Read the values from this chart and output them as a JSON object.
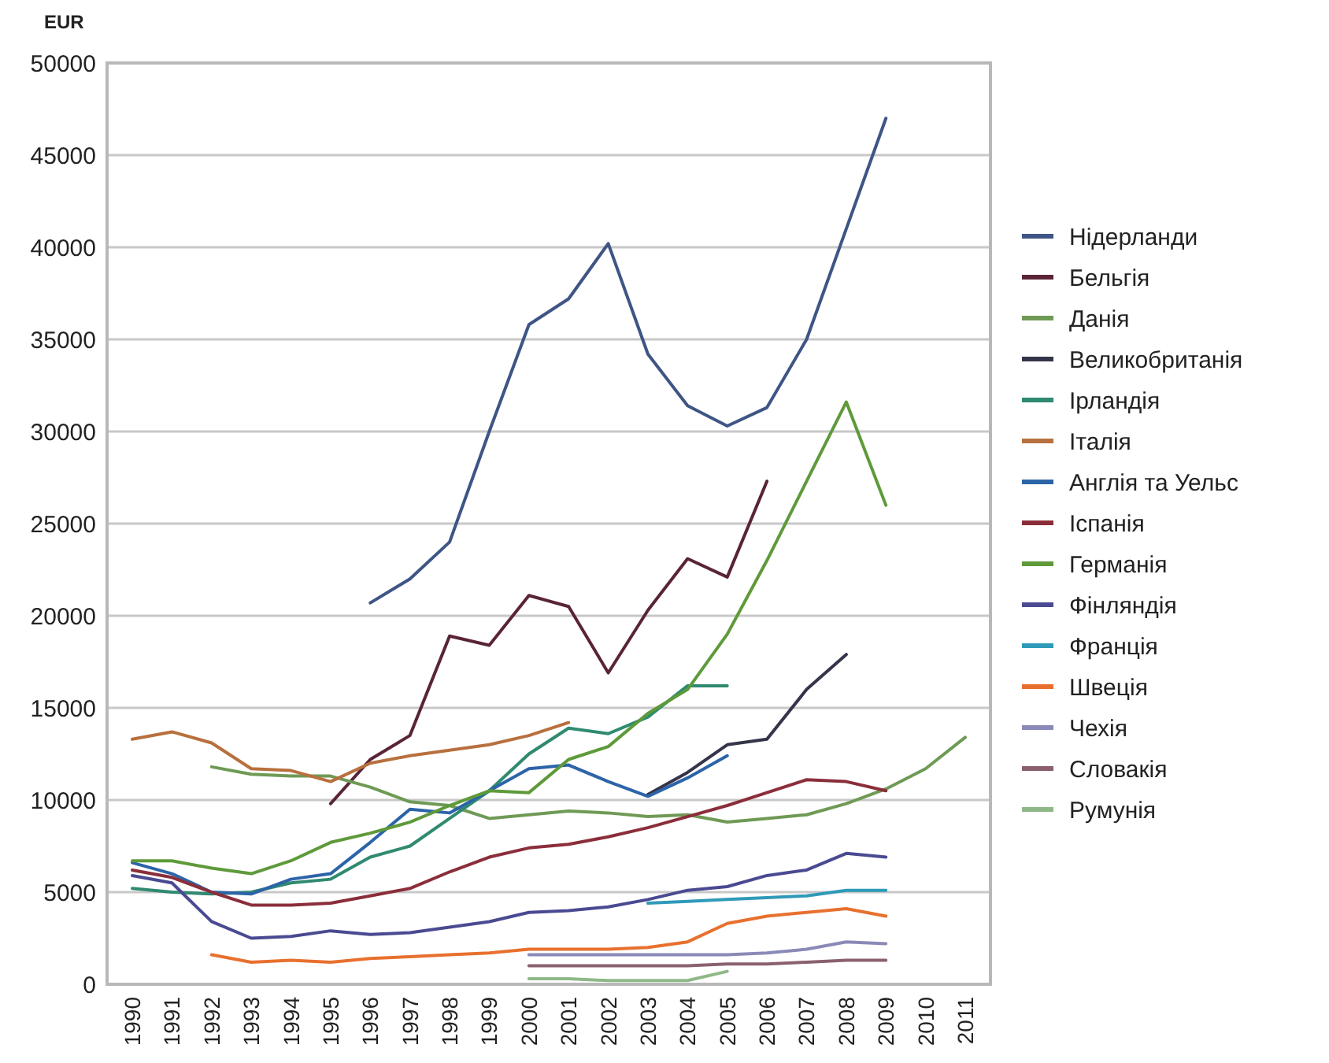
{
  "chart_data": {
    "type": "line",
    "ylabel": "EUR",
    "categories": [
      "1990",
      "1991",
      "1992",
      "1993",
      "1994",
      "1995",
      "1996",
      "1997",
      "1998",
      "1999",
      "2000",
      "2001",
      "2002",
      "2003",
      "2004",
      "2005",
      "2006",
      "2007",
      "2008",
      "2009",
      "2010",
      "2011"
    ],
    "ylim": [
      0,
      50000
    ],
    "yticks": [
      0,
      5000,
      10000,
      15000,
      20000,
      25000,
      30000,
      35000,
      40000,
      45000,
      50000
    ],
    "grid": "y",
    "legend": "right",
    "marker": "none",
    "line_style": "solid",
    "series": [
      {
        "name": "Нідерланди",
        "color": "#3e5585",
        "values": [
          null,
          null,
          null,
          null,
          null,
          null,
          20700,
          22000,
          24000,
          30000,
          35800,
          37200,
          40200,
          34200,
          31400,
          30300,
          31300,
          35000,
          41000,
          47000,
          null,
          null
        ]
      },
      {
        "name": "Бельгія",
        "color": "#5a2438",
        "values": [
          null,
          null,
          null,
          null,
          null,
          9800,
          12200,
          13500,
          18900,
          18400,
          21100,
          20500,
          16900,
          20300,
          23100,
          22100,
          27300,
          null,
          null,
          null,
          null,
          null
        ]
      },
      {
        "name": "Данія",
        "color": "#6f9a55",
        "values": [
          null,
          null,
          11800,
          11400,
          11300,
          11300,
          10700,
          9900,
          9700,
          9000,
          9200,
          9400,
          9300,
          9100,
          9200,
          8800,
          9000,
          9200,
          9800,
          10600,
          11700,
          13400
        ]
      },
      {
        "name": "Великобританія",
        "color": "#34344a",
        "values": [
          null,
          null,
          null,
          null,
          null,
          null,
          null,
          null,
          null,
          null,
          null,
          null,
          null,
          10300,
          11500,
          13000,
          13300,
          16000,
          17900,
          null,
          null,
          null
        ]
      },
      {
        "name": "Ірландія",
        "color": "#2f8a70",
        "values": [
          5200,
          5000,
          4900,
          5000,
          5500,
          5700,
          6900,
          7500,
          9000,
          10500,
          12500,
          13900,
          13600,
          14500,
          16200,
          16200,
          null,
          null,
          null,
          null,
          null,
          null
        ]
      },
      {
        "name": "Італія",
        "color": "#b8703e",
        "values": [
          13300,
          13700,
          13100,
          11700,
          11600,
          11000,
          12000,
          12400,
          12700,
          13000,
          13500,
          14200,
          null,
          null,
          null,
          null,
          null,
          null,
          null,
          null,
          null,
          null
        ]
      },
      {
        "name": "Англія та Уельс",
        "color": "#2c64a8",
        "values": [
          6600,
          6000,
          5000,
          4900,
          5700,
          6000,
          7700,
          9500,
          9300,
          10500,
          11700,
          11900,
          11000,
          10200,
          11200,
          12400,
          null,
          null,
          null,
          null,
          null,
          null
        ]
      },
      {
        "name": "Іспанія",
        "color": "#8b2e3a",
        "values": [
          6200,
          5800,
          5000,
          4300,
          4300,
          4400,
          4800,
          5200,
          6100,
          6900,
          7400,
          7600,
          8000,
          8500,
          9100,
          9700,
          10400,
          11100,
          11000,
          10500,
          null,
          null
        ]
      },
      {
        "name": "Германія",
        "color": "#5e9a3a",
        "values": [
          6700,
          6700,
          6300,
          6000,
          6700,
          7700,
          8200,
          8800,
          9700,
          10500,
          10400,
          12200,
          12900,
          14700,
          16000,
          19000,
          23000,
          27300,
          31600,
          26000,
          null,
          null
        ]
      },
      {
        "name": "Фінляндія",
        "color": "#4a4a92",
        "values": [
          5900,
          5500,
          3400,
          2500,
          2600,
          2900,
          2700,
          2800,
          3100,
          3400,
          3900,
          4000,
          4200,
          4600,
          5100,
          5300,
          5900,
          6200,
          7100,
          6900,
          null,
          null
        ]
      },
      {
        "name": "Франція",
        "color": "#2f9ab8",
        "values": [
          null,
          null,
          null,
          null,
          null,
          null,
          null,
          null,
          null,
          null,
          null,
          null,
          null,
          4400,
          4500,
          4600,
          4700,
          4800,
          5100,
          5100,
          null,
          null
        ]
      },
      {
        "name": "Швеція",
        "color": "#e8702e",
        "values": [
          null,
          null,
          1600,
          1200,
          1300,
          1200,
          1400,
          1500,
          1600,
          1700,
          1900,
          1900,
          1900,
          2000,
          2300,
          3300,
          3700,
          3900,
          4100,
          3700,
          null,
          null
        ]
      },
      {
        "name": "Чехія",
        "color": "#8a8ab8",
        "values": [
          null,
          null,
          null,
          null,
          null,
          null,
          null,
          null,
          null,
          null,
          1600,
          1600,
          1600,
          1600,
          1600,
          1600,
          1700,
          1900,
          2300,
          2200,
          null,
          null
        ]
      },
      {
        "name": "Словакія",
        "color": "#8a6070",
        "values": [
          null,
          null,
          null,
          null,
          null,
          null,
          null,
          null,
          null,
          null,
          1000,
          1000,
          1000,
          1000,
          1000,
          1100,
          1100,
          1200,
          1300,
          1300,
          null,
          null
        ]
      },
      {
        "name": "Румунія",
        "color": "#8fb888",
        "values": [
          null,
          null,
          null,
          null,
          null,
          null,
          null,
          null,
          null,
          null,
          300,
          300,
          200,
          200,
          200,
          700,
          null,
          null,
          null,
          null,
          null,
          null
        ]
      }
    ]
  }
}
